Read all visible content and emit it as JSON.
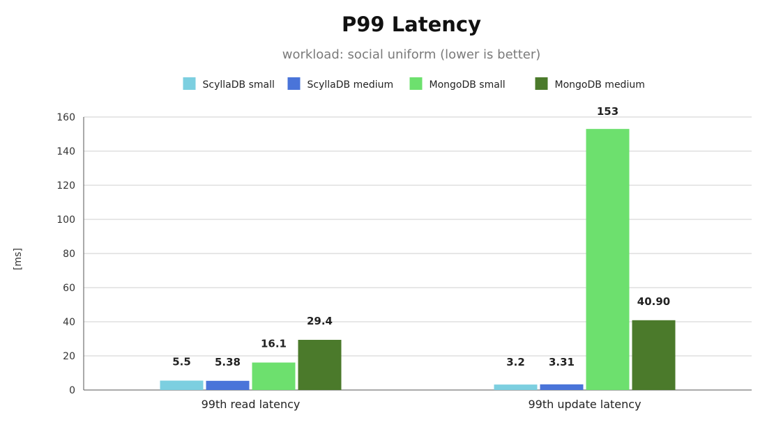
{
  "chart_data": {
    "type": "bar",
    "title": "P99 Latency",
    "subtitle": "workload: social uniform (lower is better)",
    "xlabel": "",
    "ylabel": "[ms]",
    "ylim": [
      0,
      160
    ],
    "yticks": [
      0,
      20,
      40,
      60,
      80,
      100,
      120,
      140,
      160
    ],
    "grid": true,
    "legend_position": "top",
    "categories": [
      "99th read latency",
      "99th update latency"
    ],
    "series": [
      {
        "name": "ScyllaDB small",
        "color": "#7ccfe0",
        "values": [
          5.5,
          3.2
        ],
        "labels": [
          "5.5",
          "3.2"
        ]
      },
      {
        "name": "ScyllaDB medium",
        "color": "#4a74d9",
        "values": [
          5.38,
          3.31
        ],
        "labels": [
          "5.38",
          "3.31"
        ]
      },
      {
        "name": "MongoDB small",
        "color": "#6de06e",
        "values": [
          16.1,
          153
        ],
        "labels": [
          "16.1",
          "153"
        ]
      },
      {
        "name": "MongoDB medium",
        "color": "#4b7a2b",
        "values": [
          29.4,
          40.9
        ],
        "labels": [
          "29.4",
          "40.90"
        ]
      }
    ]
  }
}
